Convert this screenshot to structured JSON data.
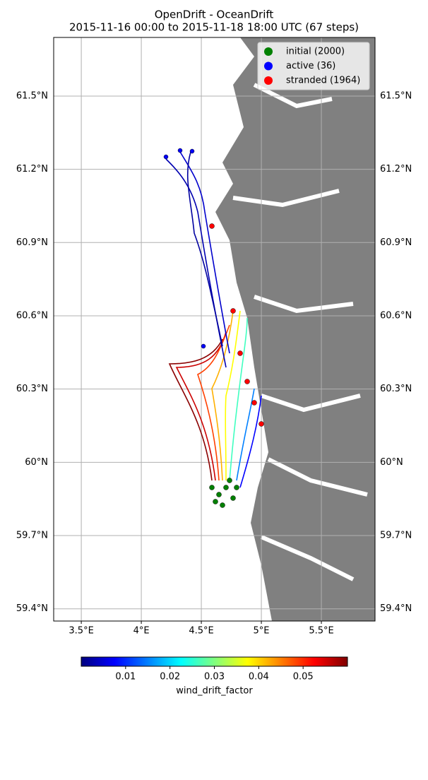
{
  "title": "OpenDrift - OceanDrift",
  "subtitle": "2015-11-16 00:00 to 2015-11-18 18:00 UTC (67 steps)",
  "map": {
    "xlim": [
      3.27,
      5.947
    ],
    "ylim": [
      59.35,
      61.74
    ],
    "xticks": [
      {
        "value": 3.5,
        "label": "3.5°E"
      },
      {
        "value": 4,
        "label": "4°E"
      },
      {
        "value": 4.5,
        "label": "4.5°E"
      },
      {
        "value": 5,
        "label": "5°E"
      },
      {
        "value": 5.5,
        "label": "5.5°E"
      }
    ],
    "yticks": [
      {
        "value": 59.4,
        "label": "59.4°N"
      },
      {
        "value": 59.7,
        "label": "59.7°N"
      },
      {
        "value": 60,
        "label": "60°N"
      },
      {
        "value": 60.3,
        "label": "60.3°N"
      },
      {
        "value": 60.6,
        "label": "60.6°N"
      },
      {
        "value": 60.9,
        "label": "60.9°N"
      },
      {
        "value": 61.2,
        "label": "61.2°N"
      },
      {
        "value": 61.5,
        "label": "61.5°N"
      }
    ],
    "grid": true,
    "land_color": "#808080",
    "legend": [
      {
        "name": "initial (2000)",
        "color": "#008000"
      },
      {
        "name": "active (36)",
        "color": "#0000ff"
      },
      {
        "name": "stranded (1964)",
        "color": "#ff0000"
      }
    ],
    "legend_position": "upper right"
  },
  "colorbar": {
    "label": "wind_drift_factor",
    "lim": [
      0,
      0.06
    ],
    "ticks": [
      0.01,
      0.02,
      0.03,
      0.04,
      0.05
    ],
    "colormap": "jet"
  }
}
